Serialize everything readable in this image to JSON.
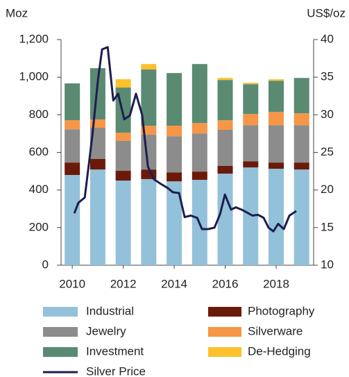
{
  "chart_data": {
    "type": "bar",
    "stacked": true,
    "ylabel": "Moz",
    "y2label": "US$/oz",
    "x": [
      2010,
      2011,
      2012,
      2013,
      2014,
      2015,
      2016,
      2017,
      2018,
      2019
    ],
    "xlim": [
      2009.56,
      2019.47
    ],
    "xticks": [
      2010,
      2012,
      2014,
      2016,
      2018
    ],
    "ylim": [
      0,
      1200
    ],
    "yticks": [
      0,
      200,
      400,
      600,
      800,
      {
        "value": 1000,
        "label": "1,000"
      },
      {
        "value": 1200,
        "label": "1,200"
      }
    ],
    "y2lim": [
      10,
      40
    ],
    "y2ticks": [
      10,
      15,
      20,
      25,
      30,
      35,
      40
    ],
    "series": [
      {
        "name": "Industrial",
        "color": "#93c1d9",
        "values": [
          480,
          509,
          450,
          458,
          446,
          454,
          487,
          520,
          513,
          509
        ]
      },
      {
        "name": "Photography",
        "color": "#6b1a0a",
        "values": [
          66,
          56,
          52,
          51,
          48,
          44,
          41,
          33,
          33,
          37
        ]
      },
      {
        "name": "Jewelry",
        "color": "#8c8c8c",
        "values": [
          177,
          166,
          159,
          185,
          192,
          203,
          192,
          192,
          199,
          199
        ]
      },
      {
        "name": "Silverware",
        "color": "#f79646",
        "values": [
          48,
          44,
          44,
          48,
          56,
          55,
          51,
          59,
          70,
          63
        ]
      },
      {
        "name": "Investment",
        "color": "#5b8a72",
        "values": [
          196,
          273,
          240,
          299,
          280,
          314,
          214,
          159,
          166,
          188
        ]
      },
      {
        "name": "De-Hedging",
        "color": "#fcc12d",
        "values": [
          0,
          0,
          44,
          29,
          0,
          0,
          11,
          7,
          8,
          0
        ]
      },
      {
        "name": "Silver Price",
        "type": "line",
        "axis": "y2",
        "color": "#1d1d4f",
        "x": [
          2010.08,
          2010.24,
          2010.49,
          2010.79,
          2011.01,
          2011.17,
          2011.39,
          2011.61,
          2011.8,
          2012.04,
          2012.26,
          2012.5,
          2012.74,
          2012.97,
          2013.21,
          2013.48,
          2013.73,
          2013.95,
          2014.19,
          2014.41,
          2014.65,
          2014.9,
          2015.09,
          2015.33,
          2015.58,
          2015.8,
          2015.99,
          2016.23,
          2016.42,
          2016.64,
          2016.86,
          2017.07,
          2017.29,
          2017.51,
          2017.7,
          2017.89,
          2018.08,
          2018.3,
          2018.52,
          2018.79
        ],
        "values": [
          16.9,
          18.3,
          19.0,
          27.3,
          34.7,
          38.7,
          39.0,
          31.9,
          32.8,
          29.4,
          29.9,
          32.8,
          30.0,
          23.1,
          21.4,
          20.8,
          20.3,
          19.7,
          19.6,
          16.4,
          16.6,
          16.3,
          14.8,
          14.8,
          15.0,
          16.8,
          19.4,
          17.4,
          17.7,
          17.4,
          17.0,
          16.6,
          16.7,
          16.3,
          15.0,
          14.5,
          15.5,
          14.8,
          16.6,
          17.2
        ]
      }
    ]
  }
}
